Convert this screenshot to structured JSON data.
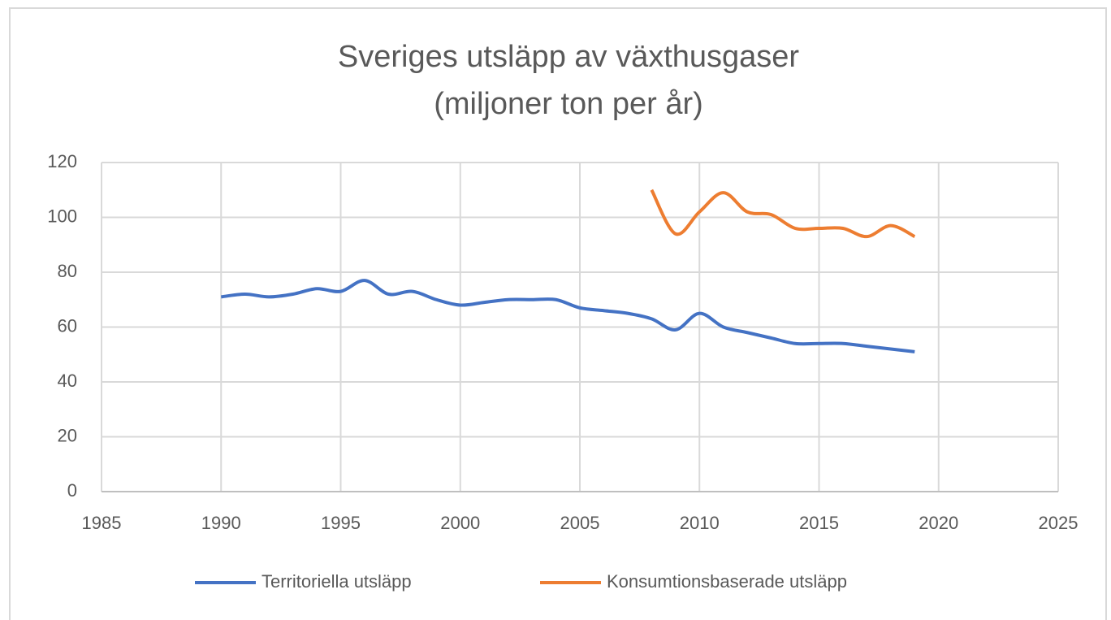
{
  "chart_data": {
    "type": "line",
    "title": "Sveriges utsläpp av växthusgaser",
    "subtitle": "(miljoner ton per år)",
    "x": [
      1990,
      1991,
      1992,
      1993,
      1994,
      1995,
      1996,
      1997,
      1998,
      1999,
      2000,
      2001,
      2002,
      2003,
      2004,
      2005,
      2006,
      2007,
      2008,
      2009,
      2010,
      2011,
      2012,
      2013,
      2014,
      2015,
      2016,
      2017,
      2018,
      2019
    ],
    "series": [
      {
        "name": "Territoriella utsläpp",
        "color": "#4472c4",
        "values": [
          71,
          72,
          71,
          72,
          74,
          73,
          77,
          72,
          73,
          70,
          68,
          69,
          70,
          70,
          70,
          67,
          66,
          65,
          63,
          59,
          65,
          60,
          58,
          56,
          54,
          54,
          54,
          53,
          52,
          51
        ]
      },
      {
        "name": "Konsumtionsbaserade utsläpp",
        "color": "#ed7d31",
        "values": [
          null,
          null,
          null,
          null,
          null,
          null,
          null,
          null,
          null,
          null,
          null,
          null,
          null,
          null,
          null,
          null,
          null,
          null,
          110,
          94,
          102,
          109,
          102,
          101,
          96,
          96,
          96,
          93,
          97,
          93
        ]
      }
    ],
    "xlim": [
      1985,
      2025
    ],
    "xticks": [
      1985,
      1990,
      1995,
      2000,
      2005,
      2010,
      2015,
      2020,
      2025
    ],
    "ylim": [
      0,
      120
    ],
    "yticks": [
      0,
      20,
      40,
      60,
      80,
      100,
      120
    ],
    "grid": true,
    "legend": "bottom"
  }
}
